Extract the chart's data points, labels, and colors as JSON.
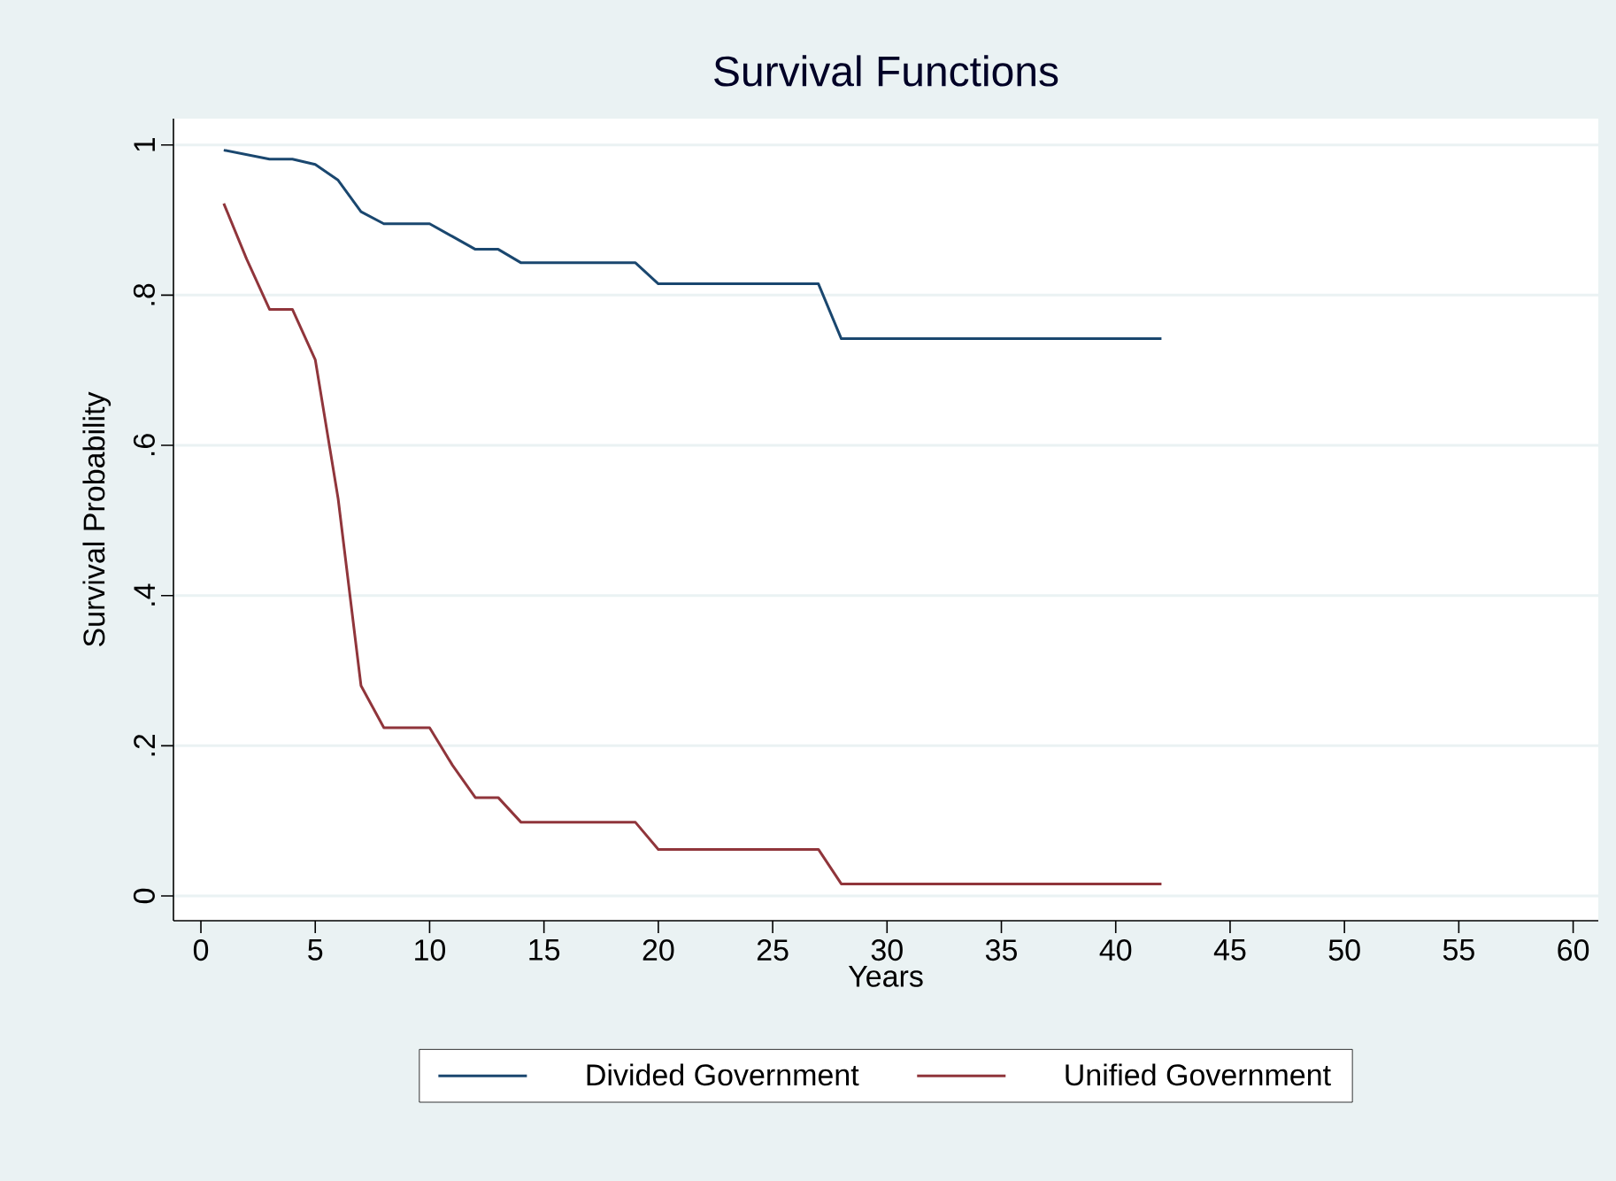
{
  "chart_data": {
    "type": "line",
    "title": "Survival Functions",
    "xlabel": "Years",
    "ylabel": "Survival Probability",
    "xlim": [
      -1.2,
      61.1
    ],
    "ylim": [
      -0.033,
      1.035
    ],
    "xticks": [
      0,
      5,
      10,
      15,
      20,
      25,
      30,
      35,
      40,
      45,
      50,
      55,
      60
    ],
    "yticks": [
      {
        "value": 0,
        "label": "0"
      },
      {
        "value": 0.2,
        "label": ".2"
      },
      {
        "value": 0.4,
        "label": ".4"
      },
      {
        "value": 0.6,
        "label": ".6"
      },
      {
        "value": 0.8,
        "label": ".8"
      },
      {
        "value": 1,
        "label": "1"
      }
    ],
    "grid": "y",
    "legend": "bottom",
    "marker": "none",
    "line_style": "solid",
    "series": [
      {
        "name": "Divided Government",
        "color": "#1a476f",
        "x": [
          1,
          2,
          3,
          4,
          5,
          6,
          7,
          8,
          9,
          10,
          11,
          12,
          13,
          14,
          15,
          16,
          17,
          18,
          19,
          20,
          21,
          22,
          23,
          24,
          25,
          26,
          27,
          28,
          42
        ],
        "values": [
          0.993,
          0.987,
          0.981,
          0.981,
          0.974,
          0.953,
          0.911,
          0.895,
          0.895,
          0.895,
          0.878,
          0.861,
          0.861,
          0.843,
          0.843,
          0.843,
          0.843,
          0.843,
          0.843,
          0.815,
          0.815,
          0.815,
          0.815,
          0.815,
          0.815,
          0.815,
          0.815,
          0.742,
          0.742
        ]
      },
      {
        "name": "Unified Government",
        "color": "#90353b",
        "x": [
          1,
          2,
          3,
          4,
          5,
          6,
          7,
          8,
          9,
          10,
          11,
          12,
          13,
          14,
          15,
          16,
          17,
          18,
          19,
          20,
          21,
          22,
          23,
          24,
          25,
          26,
          27,
          28,
          42
        ],
        "values": [
          0.922,
          0.848,
          0.781,
          0.781,
          0.714,
          0.529,
          0.28,
          0.224,
          0.224,
          0.224,
          0.174,
          0.131,
          0.131,
          0.098,
          0.098,
          0.098,
          0.098,
          0.098,
          0.098,
          0.062,
          0.062,
          0.062,
          0.062,
          0.062,
          0.062,
          0.062,
          0.062,
          0.016,
          0.016
        ]
      }
    ]
  }
}
